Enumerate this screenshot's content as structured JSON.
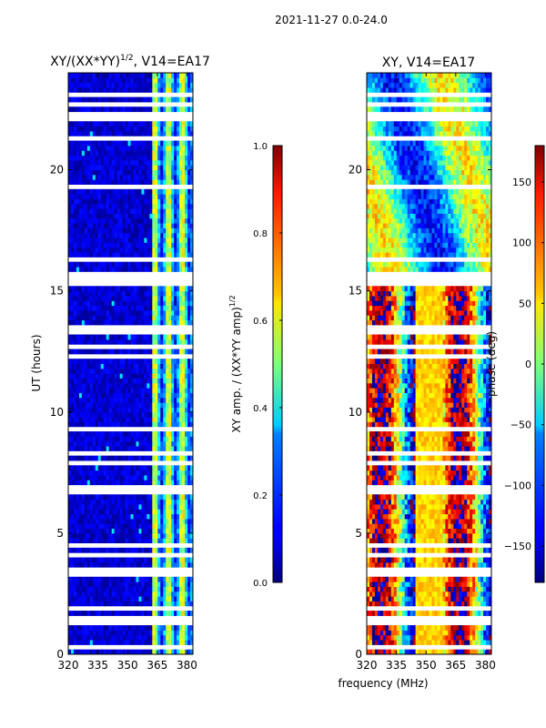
{
  "suptitle": "2021-11-27 0.0-24.0",
  "chart_data": [
    {
      "type": "heatmap",
      "title_main": "XY/(XX*YY)",
      "title_exp": "1/2",
      "title_tail": ", V14=EA17",
      "xlabel": "",
      "ylabel": "UT (hours)",
      "xlim": [
        320,
        383
      ],
      "ylim": [
        0,
        24
      ],
      "xticks": [
        320,
        335,
        350,
        365,
        380
      ],
      "yticks": [
        0,
        5,
        10,
        15,
        20
      ],
      "colormap": "jet",
      "colorbar": {
        "label_main": "XY amp. / (XX*YY amp)",
        "label_exp": "1/2",
        "range": [
          0.0,
          1.0
        ],
        "ticks": [
          0.0,
          0.2,
          0.4,
          0.6,
          0.8,
          1.0
        ],
        "tick_labels": [
          "0.0",
          "0.2",
          "0.4",
          "0.6",
          "0.8",
          "1.0"
        ]
      },
      "description_values": {
        "low_freq_band": [
          320,
          362
        ],
        "low_freq_level": 0.08,
        "high_freq_band": [
          362,
          383
        ],
        "high_freq_level": 0.45
      }
    },
    {
      "type": "heatmap",
      "title": "XY, V14=EA17",
      "xlabel": "frequency (MHz)",
      "ylabel": "",
      "xlim": [
        320,
        383
      ],
      "ylim": [
        0,
        24
      ],
      "xticks": [
        320,
        335,
        350,
        365,
        380
      ],
      "yticks": [
        0,
        5,
        10,
        15,
        20
      ],
      "colormap": "jet",
      "colorbar": {
        "label": "phase (deg)",
        "range": [
          -180,
          180
        ],
        "ticks": [
          -150,
          -100,
          -50,
          0,
          50,
          100,
          150
        ],
        "tick_labels": [
          "−150",
          "−100",
          "−50",
          "0",
          "50",
          "100",
          "150"
        ]
      }
    }
  ],
  "flagged_gaps_ut": [
    [
      0.3,
      0.4
    ],
    [
      1.3,
      1.55
    ],
    [
      1.9,
      1.95
    ],
    [
      2.0,
      2.05
    ],
    [
      3.3,
      3.35
    ],
    [
      3.5,
      3.65
    ],
    [
      4.05,
      4.1
    ],
    [
      4.5,
      4.55
    ],
    [
      5.4,
      5.45
    ],
    [
      6.0,
      6.05
    ],
    [
      6.7,
      6.75
    ],
    [
      6.85,
      6.95
    ],
    [
      7.9,
      7.95
    ],
    [
      8.0,
      8.05
    ],
    [
      8.2,
      8.3
    ],
    [
      8.4,
      8.45
    ],
    [
      9.3,
      9.35
    ],
    [
      9.6,
      9.65
    ],
    [
      12.2,
      12.3
    ],
    [
      12.6,
      12.75
    ],
    [
      13.2,
      13.3
    ],
    [
      13.5,
      13.6
    ],
    [
      14.0,
      14.05
    ],
    [
      15.2,
      15.55
    ],
    [
      15.7,
      15.8
    ],
    [
      16.3,
      16.4
    ],
    [
      17.6,
      17.65
    ],
    [
      19.2,
      19.3
    ],
    [
      20.2,
      20.25
    ],
    [
      20.6,
      20.65
    ],
    [
      21.2,
      21.3
    ],
    [
      21.8,
      21.85
    ],
    [
      22.0,
      22.1
    ],
    [
      22.3,
      22.4
    ],
    [
      22.7,
      22.75
    ],
    [
      23.1,
      23.15
    ]
  ]
}
